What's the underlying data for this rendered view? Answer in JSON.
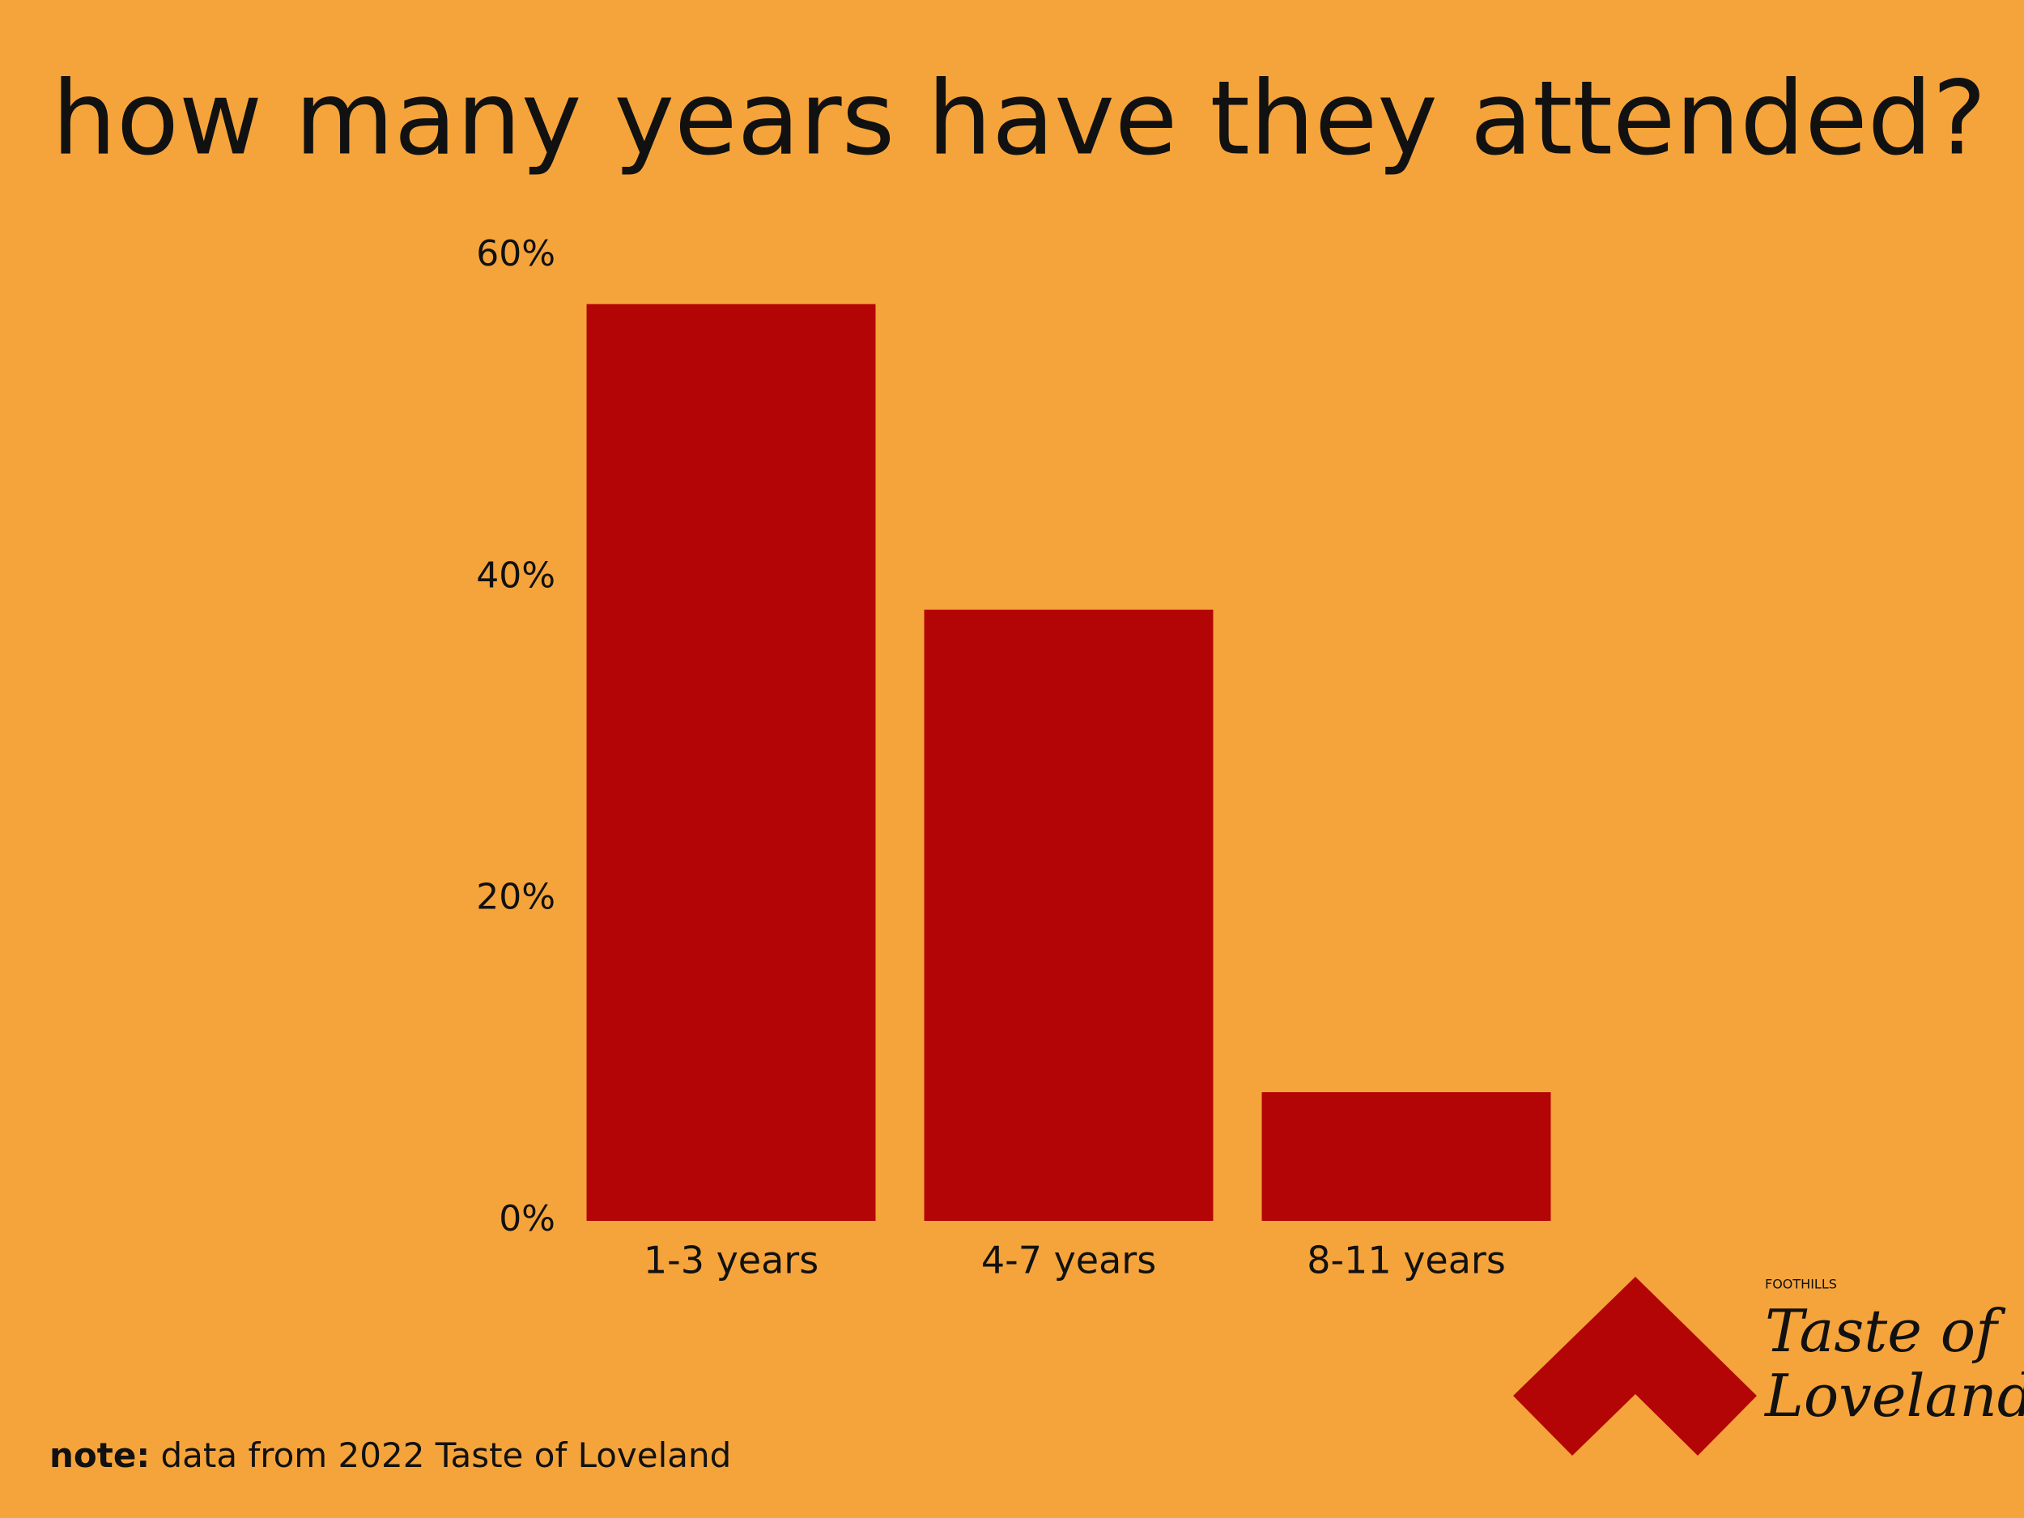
{
  "chart_data": {
    "type": "bar",
    "title": "how many years have they attended?",
    "categories": [
      "1-3 years",
      "4-7 years",
      "8-11 years"
    ],
    "values": [
      57,
      38,
      8
    ],
    "color": "#b30505",
    "ylim": [
      0,
      60
    ],
    "yticks": [
      {
        "value": 0,
        "label": "0%"
      },
      {
        "value": 20,
        "label": "20%"
      },
      {
        "value": 40,
        "label": "40%"
      },
      {
        "value": 60,
        "label": "60%"
      }
    ],
    "grid": false
  },
  "note": {
    "label": "note:",
    "text": "data from 2022 Taste of Loveland"
  },
  "logo": {
    "small": "FOOTHILLS",
    "line1": "Taste of",
    "line2": "Loveland"
  }
}
